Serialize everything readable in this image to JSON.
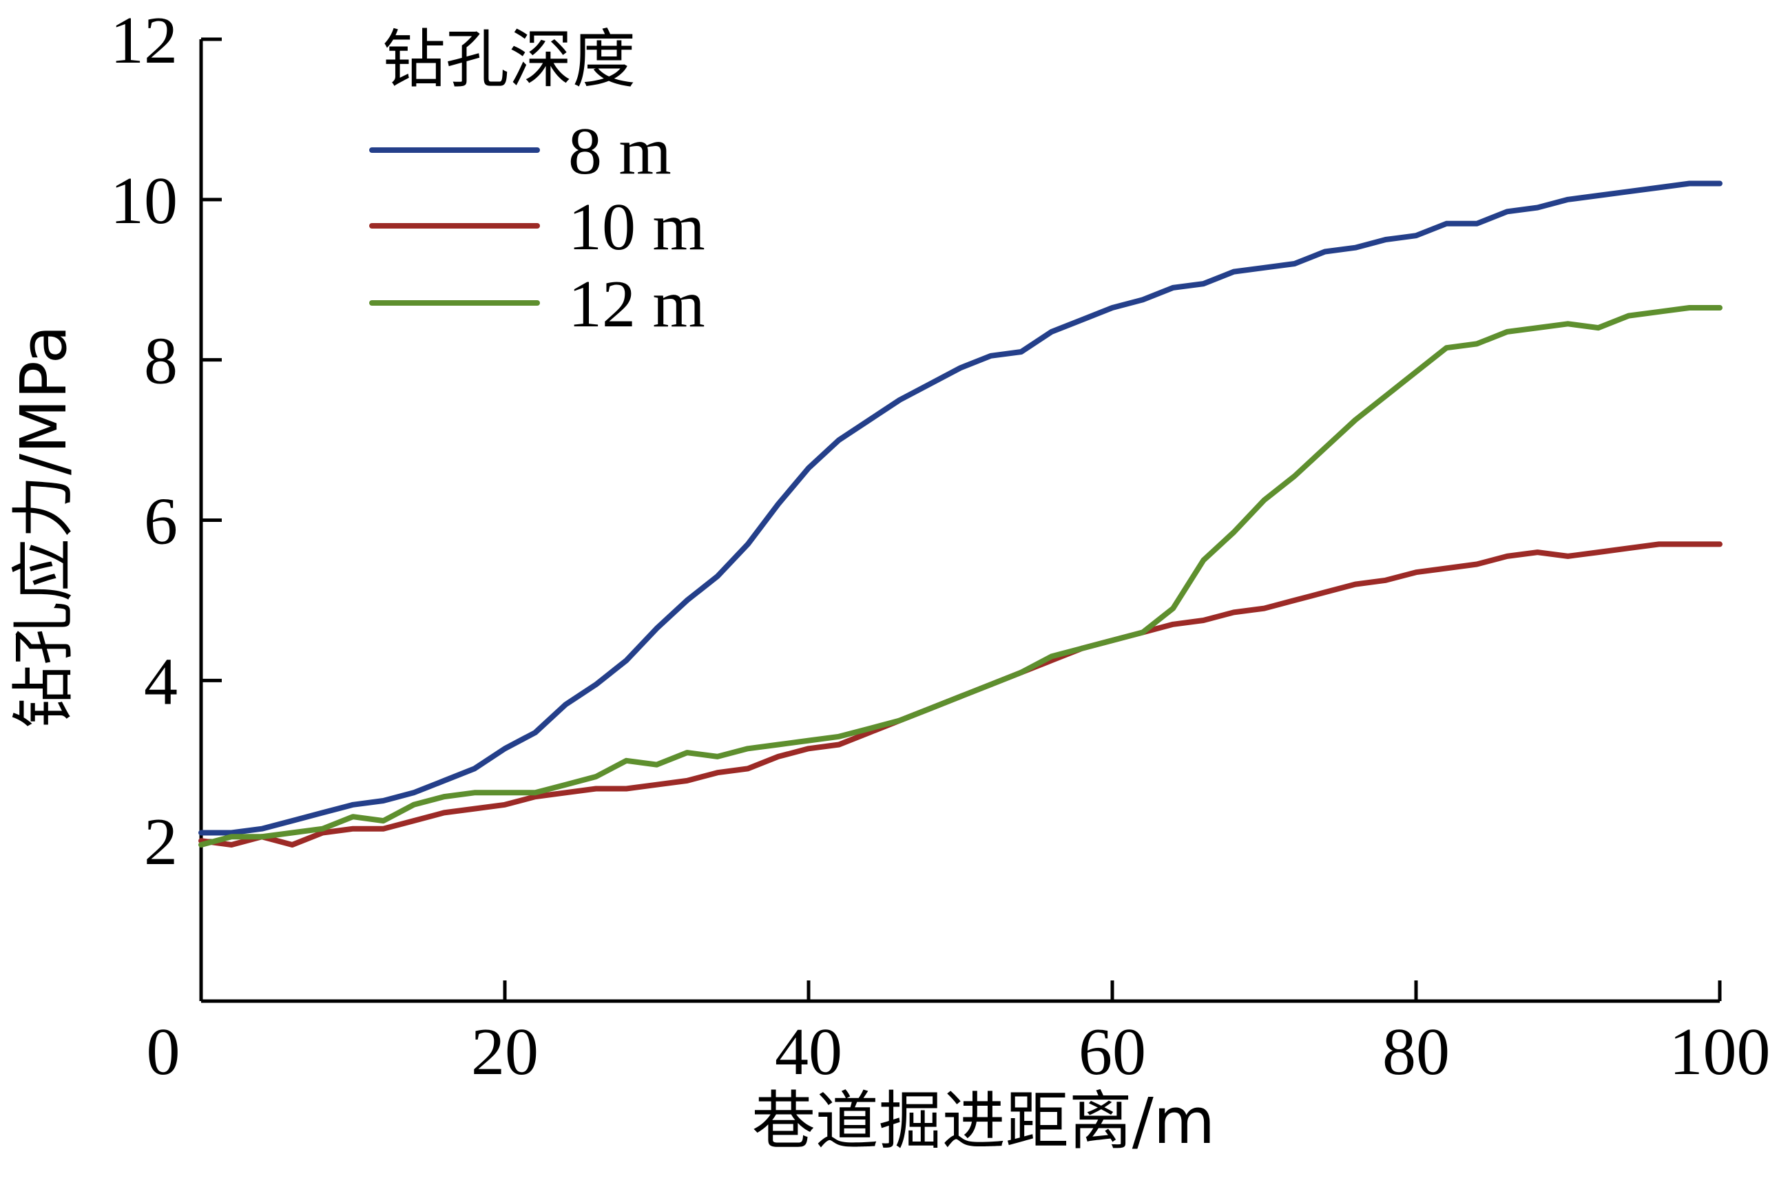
{
  "chart_data": {
    "type": "line",
    "title": "",
    "xlabel": "巷道掘进距离/m",
    "ylabel": "钻孔应力/MPa",
    "xlim": [
      0,
      100
    ],
    "ylim": [
      0,
      12
    ],
    "xticks": [
      0,
      20,
      40,
      60,
      80,
      100
    ],
    "yticks": [
      2,
      4,
      6,
      8,
      10,
      12
    ],
    "grid": false,
    "legend": {
      "title": "钻孔深度",
      "placement": "top-left"
    },
    "series": [
      {
        "name": "8 m",
        "color": "#243f8a",
        "x": [
          0,
          2,
          4,
          6,
          8,
          10,
          12,
          14,
          16,
          18,
          20,
          22,
          24,
          26,
          28,
          30,
          32,
          34,
          36,
          38,
          40,
          42,
          44,
          46,
          48,
          50,
          52,
          54,
          56,
          58,
          60,
          62,
          64,
          66,
          68,
          70,
          72,
          74,
          76,
          78,
          80,
          82,
          84,
          86,
          88,
          90,
          92,
          94,
          96,
          98,
          100
        ],
        "y": [
          2.1,
          2.1,
          2.15,
          2.25,
          2.35,
          2.45,
          2.5,
          2.6,
          2.75,
          2.9,
          3.15,
          3.35,
          3.7,
          3.95,
          4.25,
          4.65,
          5.0,
          5.3,
          5.7,
          6.2,
          6.65,
          7.0,
          7.25,
          7.5,
          7.7,
          7.9,
          8.05,
          8.1,
          8.35,
          8.5,
          8.65,
          8.75,
          8.9,
          8.95,
          9.1,
          9.15,
          9.2,
          9.35,
          9.4,
          9.5,
          9.55,
          9.7,
          9.7,
          9.85,
          9.9,
          10.0,
          10.05,
          10.1,
          10.15,
          10.2,
          10.2
        ]
      },
      {
        "name": "10 m",
        "color": "#9c2a26",
        "x": [
          0,
          2,
          4,
          6,
          8,
          10,
          12,
          14,
          16,
          18,
          20,
          22,
          24,
          26,
          28,
          30,
          32,
          34,
          36,
          38,
          40,
          42,
          44,
          46,
          48,
          50,
          52,
          54,
          56,
          58,
          60,
          62,
          64,
          66,
          68,
          70,
          72,
          74,
          76,
          78,
          80,
          82,
          84,
          86,
          88,
          90,
          92,
          94,
          96,
          98,
          100
        ],
        "y": [
          2.0,
          1.95,
          2.05,
          1.95,
          2.1,
          2.15,
          2.15,
          2.25,
          2.35,
          2.4,
          2.45,
          2.55,
          2.6,
          2.65,
          2.65,
          2.7,
          2.75,
          2.85,
          2.9,
          3.05,
          3.15,
          3.2,
          3.35,
          3.5,
          3.65,
          3.8,
          3.95,
          4.1,
          4.25,
          4.4,
          4.5,
          4.6,
          4.7,
          4.75,
          4.85,
          4.9,
          5.0,
          5.1,
          5.2,
          5.25,
          5.35,
          5.4,
          5.45,
          5.55,
          5.6,
          5.55,
          5.6,
          5.65,
          5.7,
          5.7,
          5.7
        ]
      },
      {
        "name": "12 m",
        "color": "#5e8f2e",
        "x": [
          0,
          2,
          4,
          6,
          8,
          10,
          12,
          14,
          16,
          18,
          20,
          22,
          24,
          26,
          28,
          30,
          32,
          34,
          36,
          38,
          40,
          42,
          44,
          46,
          48,
          50,
          52,
          54,
          56,
          58,
          60,
          62,
          64,
          66,
          68,
          70,
          72,
          74,
          76,
          78,
          80,
          82,
          84,
          86,
          88,
          90,
          92,
          94,
          96,
          98,
          100
        ],
        "y": [
          1.95,
          2.05,
          2.05,
          2.1,
          2.15,
          2.3,
          2.25,
          2.45,
          2.55,
          2.6,
          2.6,
          2.6,
          2.7,
          2.8,
          3.0,
          2.95,
          3.1,
          3.05,
          3.15,
          3.2,
          3.25,
          3.3,
          3.4,
          3.5,
          3.65,
          3.8,
          3.95,
          4.1,
          4.3,
          4.4,
          4.5,
          4.6,
          4.9,
          5.5,
          5.85,
          6.25,
          6.55,
          6.9,
          7.25,
          7.55,
          7.85,
          8.15,
          8.2,
          8.35,
          8.4,
          8.45,
          8.4,
          8.55,
          8.6,
          8.65,
          8.65
        ]
      }
    ]
  }
}
